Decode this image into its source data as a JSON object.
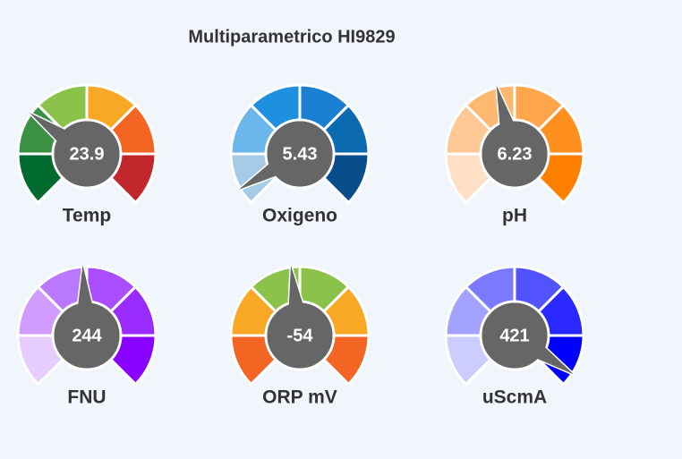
{
  "title": "Multiparametrico HI9829",
  "chart_data": [
    {
      "type": "gauge",
      "title": "Temp",
      "values": [
        23.9
      ],
      "ylim": [
        0,
        80
      ],
      "colors": [
        "#006b2e",
        "#3a9144",
        "#8bc34a",
        "#f9a825",
        "#f26522",
        "#c1272d"
      ]
    },
    {
      "type": "gauge",
      "title": "Oxigeno",
      "values": [
        5.43
      ],
      "ylim": [
        0,
        100
      ],
      "colors": [
        "#a6cbe6",
        "#6bb6ea",
        "#1e90e0",
        "#1a7fd0",
        "#0b6ab0",
        "#084d8c"
      ]
    },
    {
      "type": "gauge",
      "title": "pH",
      "values": [
        6.23
      ],
      "ylim": [
        0,
        14
      ],
      "colors": [
        "#ffe0c7",
        "#ffc894",
        "#ffb870",
        "#ffa64d",
        "#ff9020",
        "#ff7f00"
      ]
    },
    {
      "type": "gauge",
      "title": "FNU",
      "values": [
        244
      ],
      "ylim": [
        0,
        500
      ],
      "colors": [
        "#e6ccff",
        "#d09cff",
        "#b978ff",
        "#a94dff",
        "#9a2bff",
        "#8800ff"
      ]
    },
    {
      "type": "gauge",
      "title": "ORP mV",
      "values": [
        -54
      ],
      "ylim": [
        -1000,
        1000
      ],
      "colors": [
        "#f26522",
        "#f9a825",
        "#8bc34a",
        "#8bc34a",
        "#f9a825",
        "#f26522"
      ]
    },
    {
      "type": "gauge",
      "title": "uScmA",
      "values": [
        421
      ],
      "ylim": [
        0,
        440
      ],
      "colors": [
        "#ccccff",
        "#a3a3ff",
        "#7a7aff",
        "#5252ff",
        "#2929ff",
        "#0000ff"
      ]
    }
  ]
}
